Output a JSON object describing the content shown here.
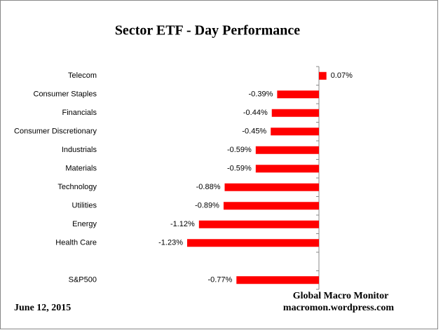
{
  "chart_data": {
    "type": "hbar",
    "title": "Sector ETF - Day  Performance",
    "categories": [
      "Telecom",
      "Consumer Staples",
      "Financials",
      "Consumer Discretionary",
      "Industrials",
      "Materials",
      "Technology",
      "Utilities",
      "Energy",
      "Health Care",
      null,
      "S&P500"
    ],
    "values": [
      0.07,
      -0.39,
      -0.44,
      -0.45,
      -0.59,
      -0.59,
      -0.88,
      -0.89,
      -1.12,
      -1.23,
      null,
      -0.77
    ],
    "value_labels": [
      "0.07%",
      "-0.39%",
      "-0.44%",
      "-0.45%",
      "-0.59%",
      "-0.59%",
      "-0.88%",
      "-0.89%",
      "-1.12%",
      "-1.23%",
      null,
      "-0.77%"
    ],
    "color": "#ff0000",
    "annotations": [
      "Global Macro Monitor",
      "macromon.wordpress.com",
      "June 12, 2015"
    ]
  }
}
